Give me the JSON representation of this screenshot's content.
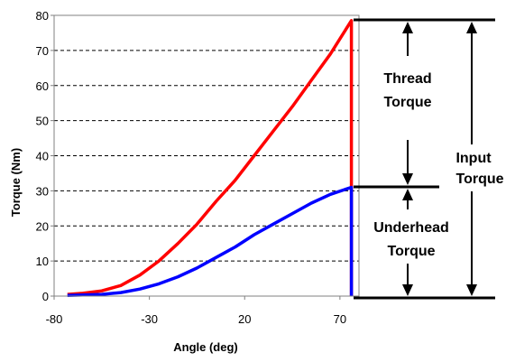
{
  "chart_data": {
    "type": "line",
    "title": "",
    "xlabel": "Angle (deg)",
    "ylabel": "Torque (Nm)",
    "xlim": [
      -80,
      80
    ],
    "ylim": [
      0,
      80
    ],
    "x_ticks": [
      -80,
      -30,
      20,
      70
    ],
    "y_ticks": [
      0,
      10,
      20,
      30,
      40,
      50,
      60,
      70,
      80
    ],
    "grid": "horizontal dashed",
    "legend": "none",
    "series": [
      {
        "color": "#ff0000",
        "x": [
          -73,
          -65,
          -55,
          -45,
          -35,
          -25,
          -15,
          -5,
          5,
          15,
          25,
          35,
          45,
          55,
          65,
          76,
          76
        ],
        "y": [
          0.5,
          0.8,
          1.5,
          3,
          6,
          10,
          15,
          20.5,
          27,
          33,
          40,
          47,
          54,
          61.5,
          69,
          78.5,
          0
        ]
      },
      {
        "color": "#0000ff",
        "x": [
          -73,
          -65,
          -55,
          -45,
          -35,
          -25,
          -15,
          -5,
          5,
          15,
          25,
          35,
          45,
          55,
          65,
          76,
          76
        ],
        "y": [
          0.2,
          0.3,
          0.5,
          1,
          2,
          3.5,
          5.5,
          8,
          11,
          14,
          17.5,
          20.5,
          23.5,
          26.5,
          29,
          31,
          0
        ]
      }
    ],
    "annotations": {
      "thread_torque": [
        "Thread",
        "Torque"
      ],
      "underhead_torque": [
        "Underhead",
        "Torque"
      ],
      "input_torque": [
        "Input",
        "Torque"
      ]
    },
    "annotation_levels": {
      "top": 78.5,
      "middle": 31,
      "bottom": 0
    }
  }
}
